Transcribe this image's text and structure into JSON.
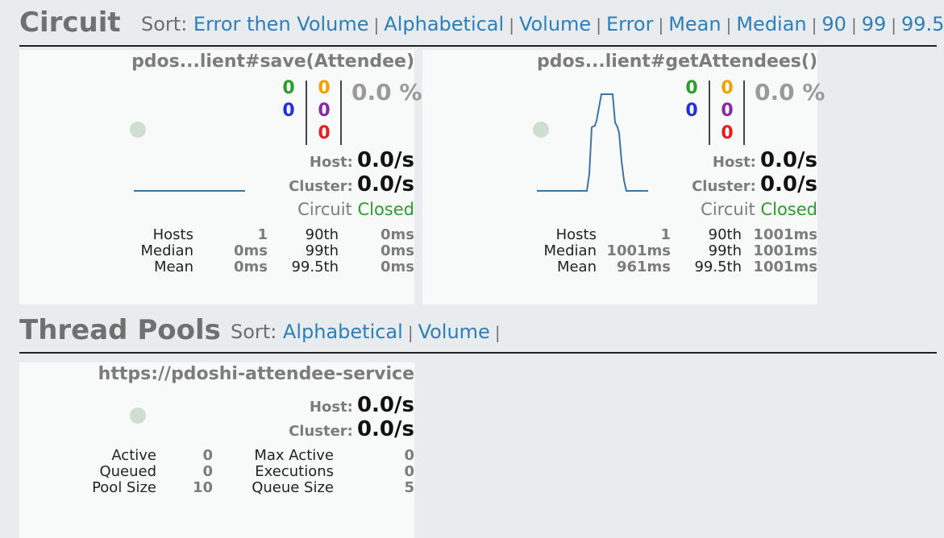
{
  "circuit": {
    "title": "Circuit",
    "sort_label": "Sort:",
    "sort_options": [
      "Error then Volume",
      "Alphabetical",
      "Volume",
      "Error",
      "Mean",
      "Median",
      "90",
      "99",
      "99.5"
    ],
    "cards": [
      {
        "name": "pdos...lient#save(Attendee)",
        "counts": {
          "success": "0",
          "short_circuited": "0",
          "timeout": "0",
          "rejected": "0",
          "failure": "0"
        },
        "error_pct": "0.0 %",
        "host_label": "Host:",
        "host_rate": "0.0/s",
        "cluster_label": "Cluster:",
        "cluster_rate": "0.0/s",
        "circuit_label": "Circuit",
        "circuit_state": "Closed",
        "stats": {
          "hosts_label": "Hosts",
          "hosts": "1",
          "median_label": "Median",
          "median": "0ms",
          "mean_label": "Mean",
          "mean": "0ms",
          "p90_label": "90th",
          "p90": "0ms",
          "p99_label": "99th",
          "p99": "0ms",
          "p995_label": "99.5th",
          "p995": "0ms"
        }
      },
      {
        "name": "pdos...lient#getAttendees()",
        "counts": {
          "success": "0",
          "short_circuited": "0",
          "timeout": "0",
          "rejected": "0",
          "failure": "0"
        },
        "error_pct": "0.0 %",
        "host_label": "Host:",
        "host_rate": "0.0/s",
        "cluster_label": "Cluster:",
        "cluster_rate": "0.0/s",
        "circuit_label": "Circuit",
        "circuit_state": "Closed",
        "stats": {
          "hosts_label": "Hosts",
          "hosts": "1",
          "median_label": "Median",
          "median": "1001ms",
          "mean_label": "Mean",
          "mean": "961ms",
          "p90_label": "90th",
          "p90": "1001ms",
          "p99_label": "99th",
          "p99": "1001ms",
          "p995_label": "99.5th",
          "p995": "1001ms"
        }
      }
    ]
  },
  "thread_pools": {
    "title": "Thread Pools",
    "sort_label": "Sort:",
    "sort_options": [
      "Alphabetical",
      "Volume"
    ],
    "cards": [
      {
        "name": "https://pdoshi-attendee-service",
        "host_label": "Host:",
        "host_rate": "0.0/s",
        "cluster_label": "Cluster:",
        "cluster_rate": "0.0/s",
        "stats": {
          "active_label": "Active",
          "active": "0",
          "queued_label": "Queued",
          "queued": "0",
          "pool_size_label": "Pool Size",
          "pool_size": "10",
          "max_active_label": "Max Active",
          "max_active": "0",
          "executions_label": "Executions",
          "executions": "0",
          "queue_size_label": "Queue Size",
          "queue_size": "5"
        }
      }
    ]
  },
  "colors": {
    "link": "#2d7fbb",
    "success": "#2a9d2a",
    "short_circuited": "#1f2fe0",
    "timeout": "#f2a000",
    "rejected": "#8a2aa3",
    "failure": "#e31f1f",
    "health_dot": "#cfdfcf",
    "sparkline": "#3d74a8"
  }
}
